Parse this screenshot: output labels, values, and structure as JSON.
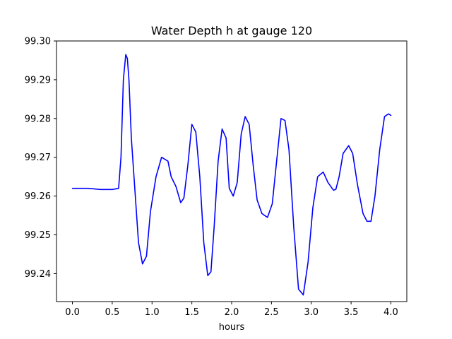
{
  "chart_data": {
    "type": "line",
    "title": "Water Depth h at gauge 120",
    "xlabel": "hours",
    "ylabel": "",
    "xlim": [
      -0.2,
      4.2
    ],
    "ylim": [
      99.2328,
      99.3
    ],
    "xticks": [
      0.0,
      0.5,
      1.0,
      1.5,
      2.0,
      2.5,
      3.0,
      3.5,
      4.0
    ],
    "xtick_labels": [
      "0.0",
      "0.5",
      "1.0",
      "1.5",
      "2.0",
      "2.5",
      "3.0",
      "3.5",
      "4.0"
    ],
    "yticks": [
      99.24,
      99.25,
      99.26,
      99.27,
      99.28,
      99.29,
      99.3
    ],
    "ytick_labels": [
      "99.24",
      "99.25",
      "99.26",
      "99.27",
      "99.28",
      "99.29",
      "99.30"
    ],
    "grid": false,
    "legend": "none",
    "series": [
      {
        "color": "#0000ff",
        "x": [
          0.0,
          0.2,
          0.35,
          0.5,
          0.58,
          0.61,
          0.64,
          0.67,
          0.69,
          0.71,
          0.74,
          0.78,
          0.83,
          0.88,
          0.93,
          0.98,
          1.05,
          1.12,
          1.2,
          1.24,
          1.3,
          1.36,
          1.4,
          1.45,
          1.5,
          1.55,
          1.6,
          1.65,
          1.7,
          1.74,
          1.78,
          1.83,
          1.88,
          1.93,
          1.97,
          2.02,
          2.07,
          2.12,
          2.17,
          2.22,
          2.27,
          2.32,
          2.38,
          2.45,
          2.51,
          2.56,
          2.62,
          2.67,
          2.72,
          2.78,
          2.84,
          2.9,
          2.96,
          3.02,
          3.08,
          3.15,
          3.21,
          3.28,
          3.31,
          3.35,
          3.4,
          3.47,
          3.52,
          3.58,
          3.65,
          3.7,
          3.75,
          3.8,
          3.86,
          3.92,
          3.97,
          4.0
        ],
        "y": [
          99.262,
          99.262,
          99.2617,
          99.2617,
          99.262,
          99.27,
          99.29,
          99.2965,
          99.2955,
          99.29,
          99.275,
          99.263,
          99.248,
          99.2425,
          99.2445,
          99.256,
          99.265,
          99.27,
          99.269,
          99.265,
          99.2625,
          99.2583,
          99.2595,
          99.268,
          99.2785,
          99.2765,
          99.265,
          99.248,
          99.2395,
          99.2405,
          99.252,
          99.269,
          99.2773,
          99.275,
          99.262,
          99.26,
          99.2635,
          99.276,
          99.2805,
          99.2785,
          99.268,
          99.259,
          99.2555,
          99.2545,
          99.258,
          99.268,
          99.28,
          99.2795,
          99.272,
          99.252,
          99.236,
          99.2345,
          99.243,
          99.257,
          99.265,
          99.2662,
          99.2635,
          99.2615,
          99.2618,
          99.265,
          99.271,
          99.273,
          99.271,
          99.263,
          99.2555,
          99.2535,
          99.2535,
          99.26,
          99.272,
          99.2805,
          99.2812,
          99.2808
        ]
      }
    ]
  }
}
